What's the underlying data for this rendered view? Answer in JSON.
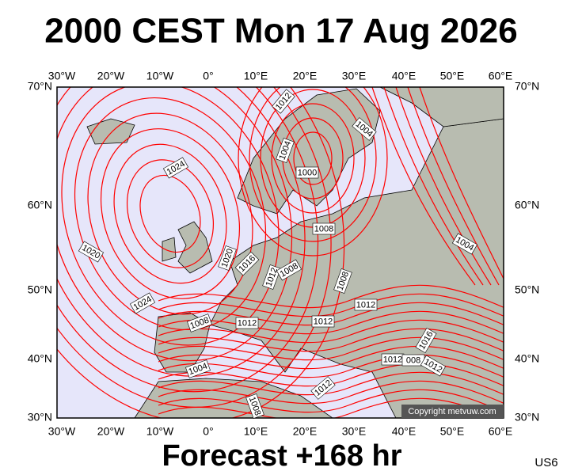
{
  "title": "2000 CEST Mon 17 Aug 2026",
  "map": {
    "lon_labels": [
      "30°W",
      "20°W",
      "10°W",
      "0°",
      "10°E",
      "20°E",
      "30°E",
      "40°E",
      "50°E",
      "60°E"
    ],
    "lat_labels": [
      "70°N",
      "60°N",
      "50°N",
      "40°N",
      "30°N"
    ],
    "isobar_labels": [
      "1012",
      "1004",
      "1004",
      "1024",
      "1000",
      "1008",
      "1020",
      "1004",
      "1020",
      "1016",
      "1012",
      "1008",
      "1008",
      "1024",
      "1012",
      "1012",
      "1008",
      "1012",
      "1016",
      "1004",
      "1012",
      "008",
      "1012",
      "1012",
      "1008"
    ]
  },
  "copyright": "Copyright metvuw.com",
  "footer": "Forecast +168 hr",
  "code": "US6"
}
